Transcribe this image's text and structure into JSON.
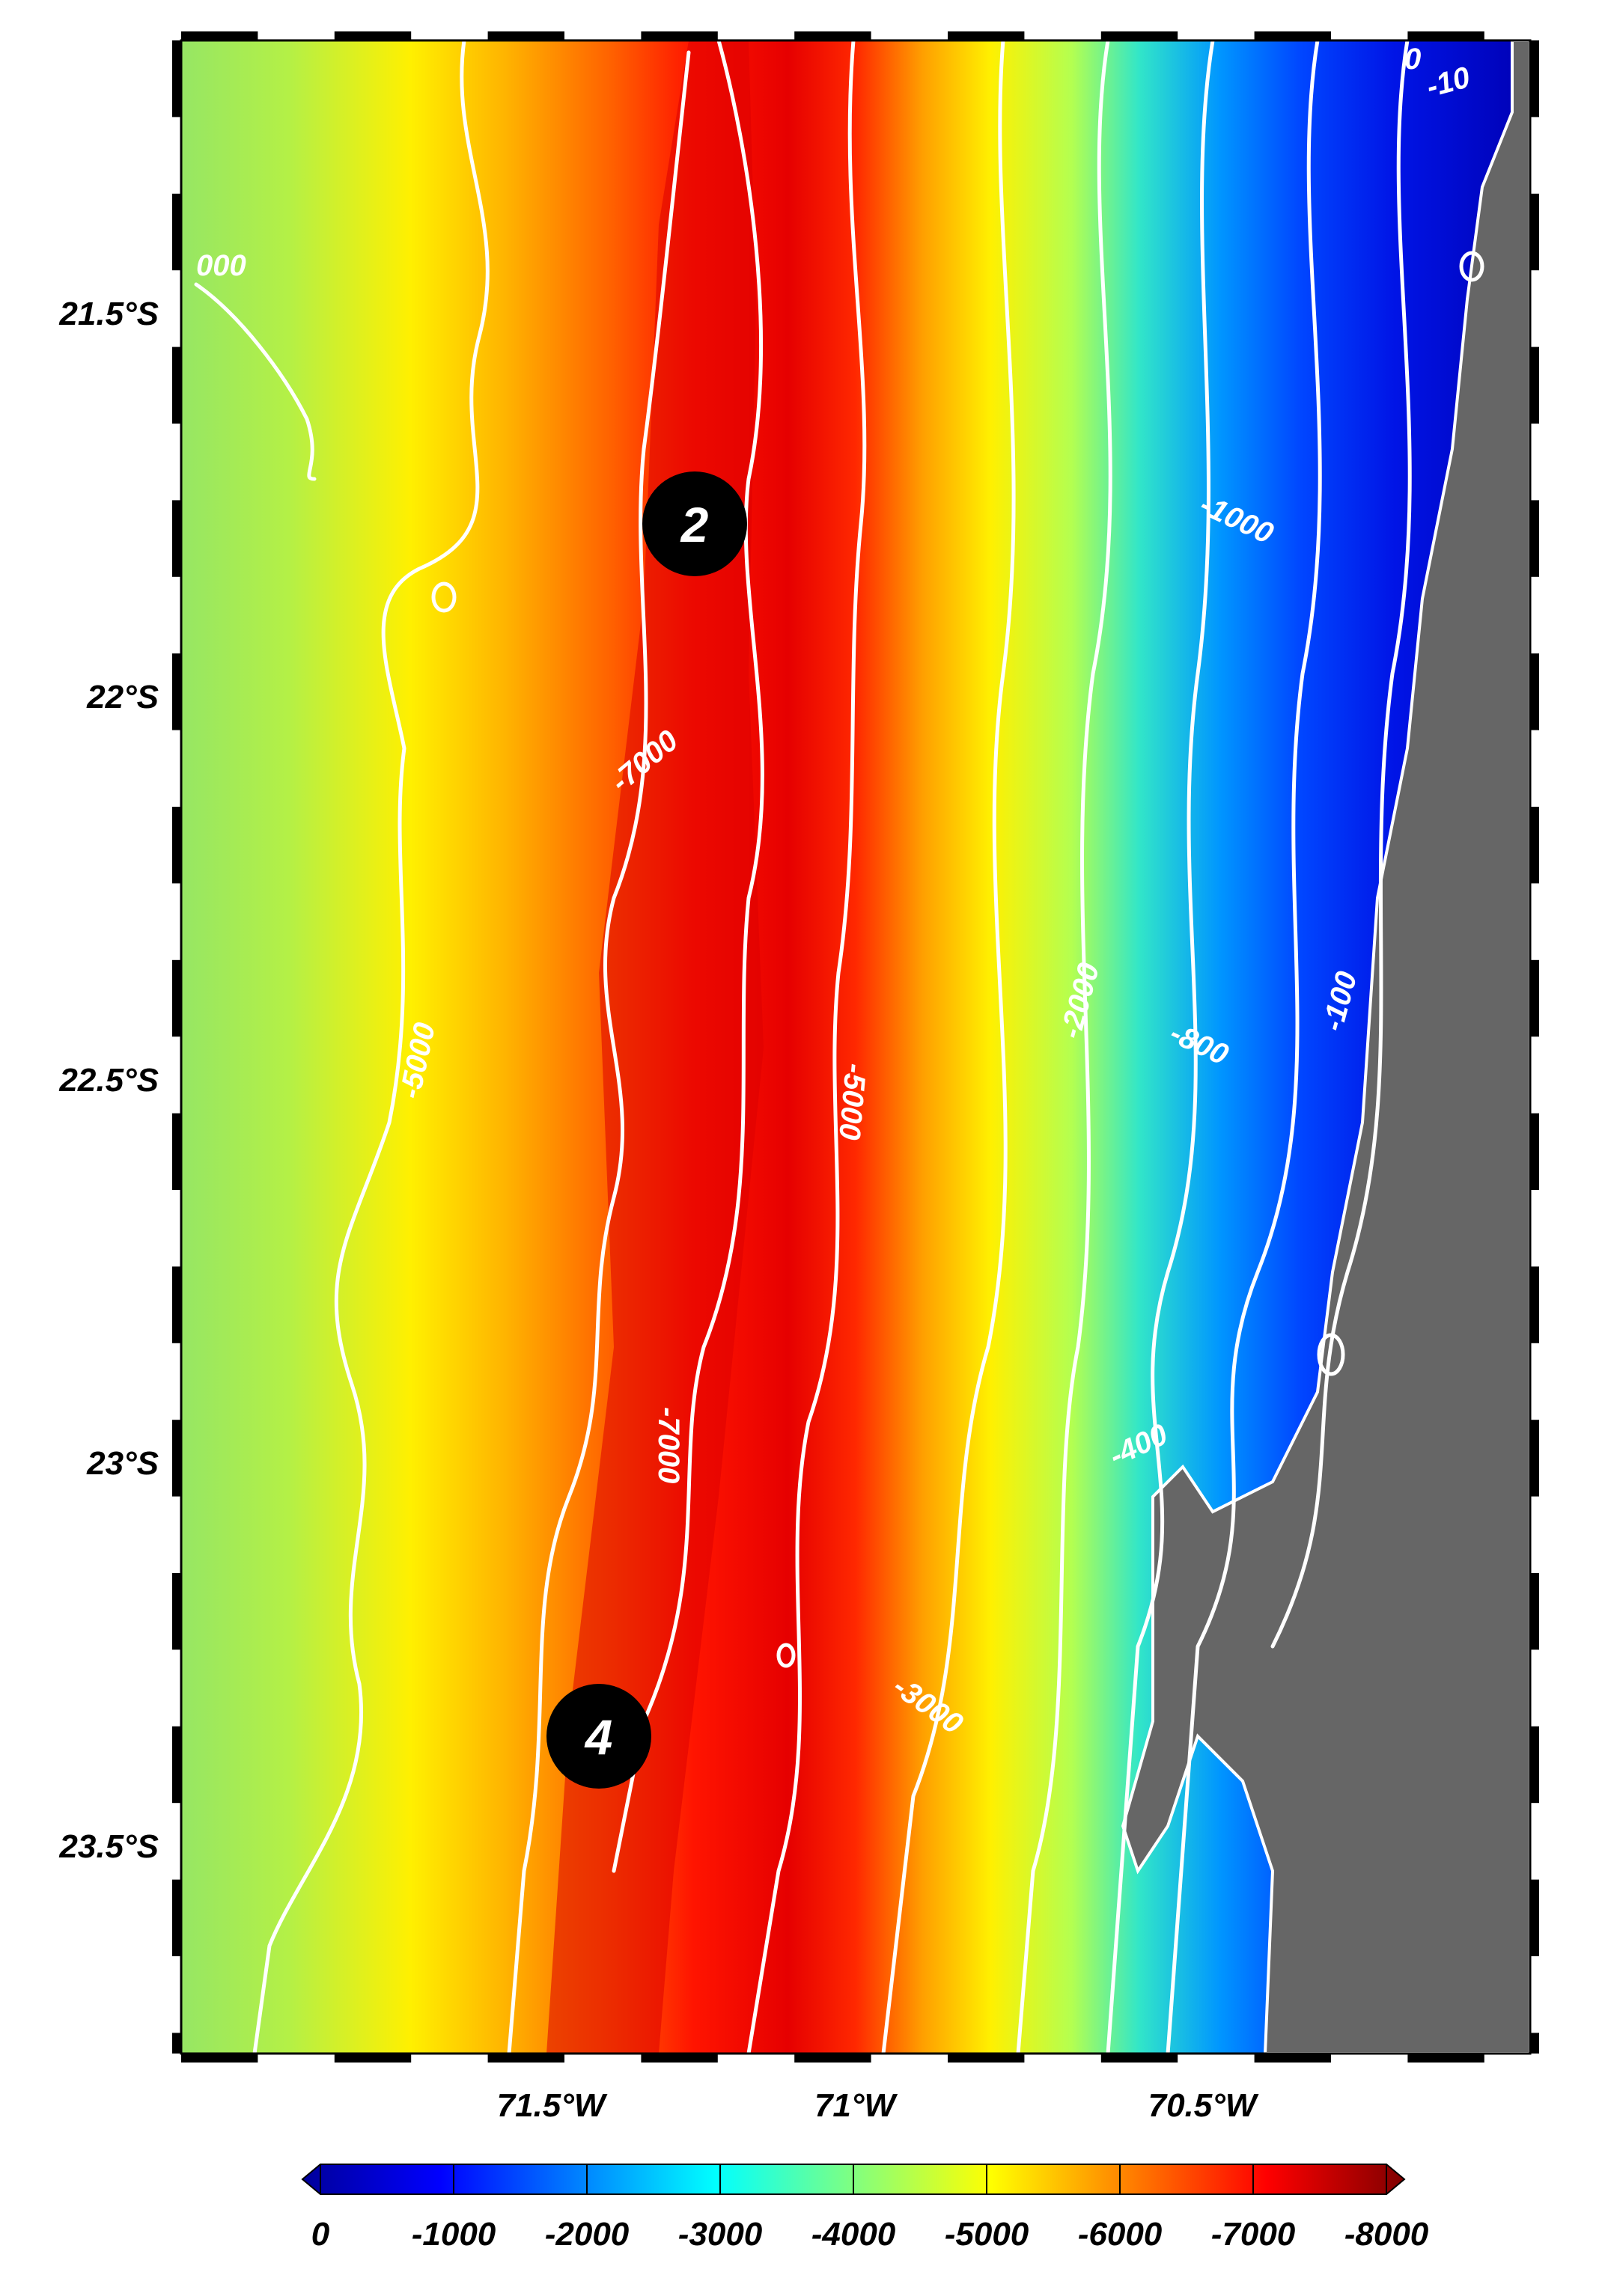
{
  "map": {
    "latitude_labels": [
      "21.5°S",
      "22°S",
      "22.5°S",
      "23°S",
      "23.5°S"
    ],
    "longitude_labels": [
      "71.5°W",
      "71°W",
      "70.5°W"
    ],
    "contour_labels": [
      "000",
      "-7000",
      "-5000",
      "-5000",
      "-7000",
      "-3000",
      "-2000",
      "-1000",
      "-800",
      "-400",
      "-100",
      "-10",
      "0"
    ],
    "markers": [
      "2",
      "4"
    ],
    "land_color": "#666666",
    "contour_color": "#ffffff"
  },
  "colorbar": {
    "tick_labels": [
      "0",
      "-1000",
      "-2000",
      "-3000",
      "-4000",
      "-5000",
      "-6000",
      "-7000",
      "-8000"
    ],
    "colors": [
      "#00009a",
      "#0000ff",
      "#0080ff",
      "#00ffff",
      "#80ff80",
      "#ffff00",
      "#ff8000",
      "#ff0000",
      "#800000"
    ]
  }
}
